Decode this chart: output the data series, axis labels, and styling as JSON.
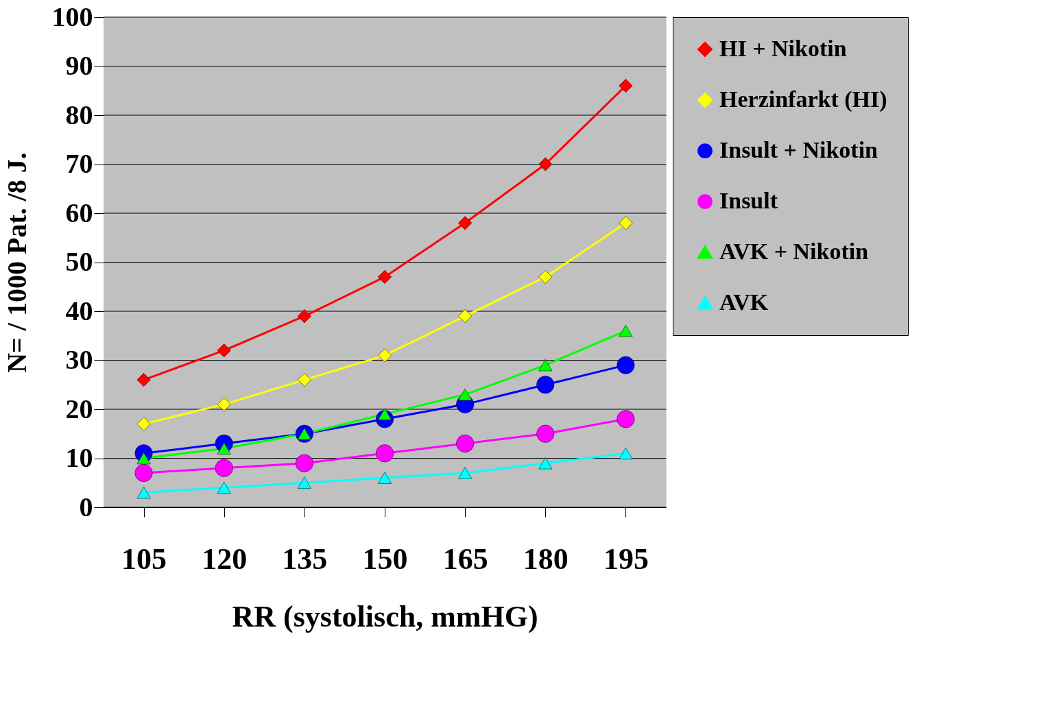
{
  "chart_data": {
    "type": "line",
    "xlabel": "RR (systolisch, mmHG)",
    "ylabel": "N= / 1000  Pat. /8 J.",
    "categories": [
      "105",
      "120",
      "135",
      "150",
      "165",
      "180",
      "195"
    ],
    "series": [
      {
        "name": "HI + Nikotin",
        "color": "#ff0000",
        "marker": "diamond",
        "values": [
          26,
          32,
          39,
          47,
          58,
          70,
          86
        ]
      },
      {
        "name": "Herzinfarkt (HI)",
        "color": "#ffff00",
        "marker": "diamond",
        "values": [
          17,
          21,
          26,
          31,
          39,
          47,
          58
        ]
      },
      {
        "name": "Insult + Nikotin",
        "color": "#0000ff",
        "marker": "circle",
        "values": [
          11,
          13,
          15,
          18,
          21,
          25,
          29
        ]
      },
      {
        "name": "Insult",
        "color": "#ff00ff",
        "marker": "circle",
        "values": [
          7,
          8,
          9,
          11,
          13,
          15,
          18
        ]
      },
      {
        "name": "AVK + Nikotin",
        "color": "#00ff00",
        "marker": "triangle",
        "values": [
          10,
          12,
          15,
          19,
          23,
          29,
          36
        ]
      },
      {
        "name": "AVK",
        "color": "#00ffff",
        "marker": "triangle",
        "values": [
          3,
          4,
          5,
          6,
          7,
          9,
          11
        ]
      }
    ],
    "ylim": [
      0,
      100
    ],
    "yticks": [
      0,
      10,
      20,
      30,
      40,
      50,
      60,
      70,
      80,
      90,
      100
    ],
    "grid": "y",
    "legend": "right",
    "line_style": "solid"
  }
}
